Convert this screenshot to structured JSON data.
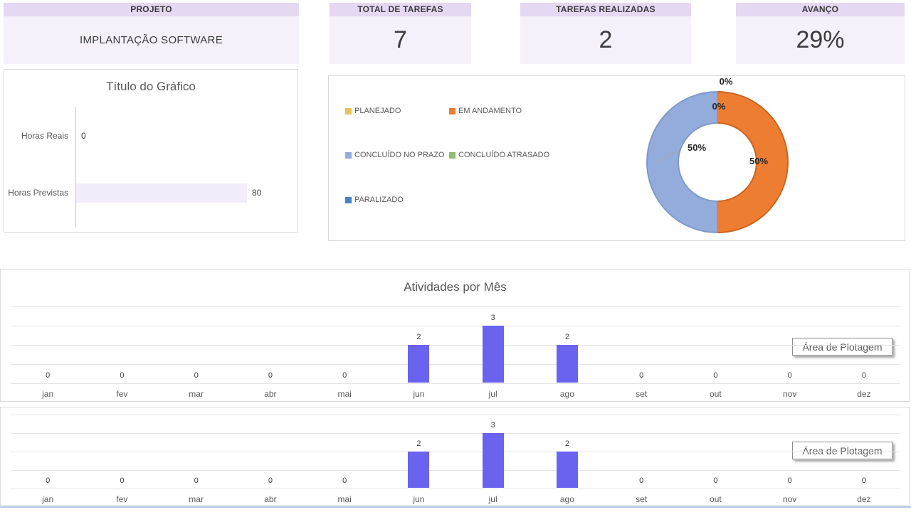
{
  "cards": [
    {
      "title": "PROJETO",
      "value": "IMPLANTAÇÃO SOFTWARE"
    },
    {
      "title": "TOTAL DE TAREFAS",
      "value": "7"
    },
    {
      "title": "TAREFAS REALIZADAS",
      "value": "2"
    },
    {
      "title": "AVANÇO",
      "value": "29%"
    }
  ],
  "tooltip_label": "Área de Plotagem",
  "chart_data": [
    {
      "id": "hours",
      "type": "bar",
      "orientation": "horizontal",
      "title": "Título do Gráfico",
      "categories": [
        "Horas Reais",
        "Horas Previstas"
      ],
      "values": [
        0,
        80
      ],
      "xlim": [
        0,
        80
      ],
      "bar_color": "#F3EDFA",
      "data_labels": true,
      "grid": false
    },
    {
      "id": "status-donut",
      "type": "pie",
      "subtype": "doughnut",
      "legend_position": "left",
      "slices": [
        {
          "label": "PLANEJADO",
          "value": 0,
          "pct_label": "0%",
          "color": "#E7C35B"
        },
        {
          "label": "EM ANDAMENTO",
          "value": 50,
          "pct_label": "50%",
          "color": "#ED7D31",
          "border_color": "#C9641F"
        },
        {
          "label": "CONCLUÍDO NO PRAZO",
          "value": 50,
          "pct_label": "50%",
          "color": "#94ACDB",
          "border_color": "#7E99C9"
        },
        {
          "label": "CONCLUÍDO ATRASADO",
          "value": 0,
          "pct_label": "0%",
          "color": "#93BB74"
        },
        {
          "label": "PARALIZADO",
          "value": 0,
          "pct_label": "0%",
          "color": "#4484C4"
        }
      ],
      "visible_labels": [
        {
          "text": "0%",
          "placement": "outside-top"
        },
        {
          "text": "0%",
          "placement": "inside-top"
        },
        {
          "text": "50%",
          "placement": "right"
        },
        {
          "text": "50%",
          "placement": "center-callout"
        }
      ]
    },
    {
      "id": "monthly-1",
      "type": "bar",
      "title": "Atividades por Mês",
      "categories": [
        "jan",
        "fev",
        "mar",
        "abr",
        "mai",
        "jun",
        "jul",
        "ago",
        "set",
        "out",
        "nov",
        "dez"
      ],
      "values": [
        0,
        0,
        0,
        0,
        0,
        2,
        3,
        2,
        0,
        0,
        0,
        0
      ],
      "ylim": [
        0,
        4
      ],
      "grid": true,
      "bar_color": "#6A63F0",
      "data_labels": true
    },
    {
      "id": "monthly-2",
      "type": "bar",
      "title": "",
      "categories": [
        "jan",
        "fev",
        "mar",
        "abr",
        "mai",
        "jun",
        "jul",
        "ago",
        "set",
        "out",
        "nov",
        "dez"
      ],
      "values": [
        0,
        0,
        0,
        0,
        0,
        2,
        3,
        2,
        0,
        0,
        0,
        0
      ],
      "ylim": [
        0,
        4
      ],
      "grid": true,
      "bar_color": "#6A63F0",
      "data_labels": true
    }
  ]
}
